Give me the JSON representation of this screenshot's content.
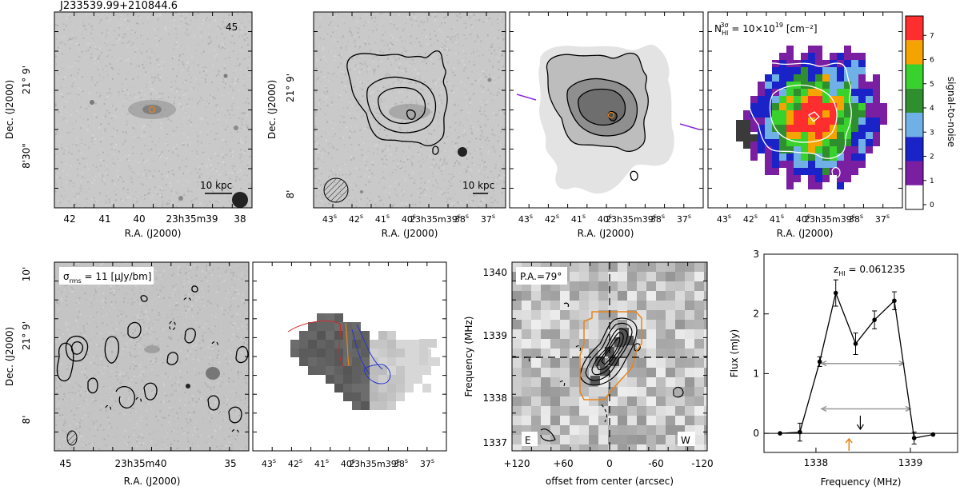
{
  "figure": {
    "source_id": "J233539.99+210844.6",
    "panel1_number": "45",
    "scale_bar_1": "10 kpc",
    "scale_bar_2": "10 kpc",
    "nhi_label_main": "N",
    "nhi_label_sub": "HI",
    "nhi_label_sup": "3σ",
    "nhi_label_value": " = 10×10",
    "nhi_label_exp": "19",
    "nhi_label_unit": " [cm⁻²]",
    "sigma_label_main": "σ",
    "sigma_label_sub": "rms",
    "sigma_label_value": " = 11 [μJy/bm]",
    "pa_label": "P.A.=79°",
    "east_label": "E",
    "west_label": "W",
    "z_label_main": "z",
    "z_label_sub": "HI",
    "z_label_value": " = 0.061235"
  },
  "axes": {
    "ra_label": "R.A. (J2000)",
    "dec_label": "Dec. (J2000)",
    "offset_label": "offset from center (arcsec)",
    "frequency_label": "Frequency (MHz)",
    "flux_label": "Flux (mJy)",
    "colorbar_label": "signal-to-noise",
    "ra_ticks_top1": [
      "42",
      "41",
      "40",
      "23h35m39",
      "38"
    ],
    "ra_ticks_top2": [
      "43",
      "42",
      "41",
      "40",
      "23h35m39",
      "38",
      "37"
    ],
    "ra_ticks_top2_extra": "s",
    "dec_ticks_top1": [
      "21° 9'",
      "8'30\""
    ],
    "dec_ticks_top2": [
      "21° 9'",
      "8'"
    ],
    "ra_ticks_bottom1": [
      "45",
      "23h35m40",
      "35"
    ],
    "ra_ticks_bottom2": [
      "43",
      "42",
      "41",
      "40",
      "23h35m39",
      "38",
      "37"
    ],
    "dec_ticks_bottom1": [
      "10'",
      "21° 9'",
      "8'"
    ],
    "offset_ticks": [
      "+120",
      "+60",
      "0",
      "-60",
      "-120"
    ],
    "freq_ticks_pv": [
      "1340",
      "1339",
      "1338",
      "1337"
    ],
    "colorbar_ticks": [
      "0",
      "1",
      "2",
      "3",
      "4",
      "5",
      "6",
      "7"
    ]
  },
  "colors": {
    "snr_scale": [
      "#ffffff",
      "#7a1fa2",
      "#1a23c8",
      "#6fb0e6",
      "#2f8f2f",
      "#39d12b",
      "#f5a300",
      "#ff2e2e"
    ],
    "receding": "#cc2a2a",
    "approaching": "#2635c9",
    "orange": "#e8851a",
    "purple": "#8a2be2"
  },
  "chart_data": {
    "type": "line",
    "title": "",
    "xlabel": "Frequency (MHz)",
    "ylabel": "Flux (mJy)",
    "xlim": [
      1337.45,
      1339.5
    ],
    "ylim": [
      -0.32,
      3.0
    ],
    "x_ticks": [
      1338,
      1339
    ],
    "y_ticks": [
      0,
      1,
      2,
      3
    ],
    "series": [
      {
        "x": [
          1337.62,
          1337.83,
          1338.04,
          1338.21,
          1338.42,
          1338.62,
          1338.83,
          1339.04,
          1339.24
        ],
        "y": [
          0.0,
          0.02,
          1.2,
          2.35,
          1.5,
          1.9,
          2.22,
          -0.08,
          -0.02
        ],
        "err": [
          0.0,
          0.15,
          0.08,
          0.22,
          0.18,
          0.15,
          0.15,
          0.1,
          0.0
        ]
      }
    ],
    "w50": [
      1338.06,
      1338.93,
      1.17
    ],
    "w20": [
      1338.06,
      1339.0,
      0.41
    ],
    "z_hi_freq": 1338.47,
    "optical_freq": 1338.35
  }
}
